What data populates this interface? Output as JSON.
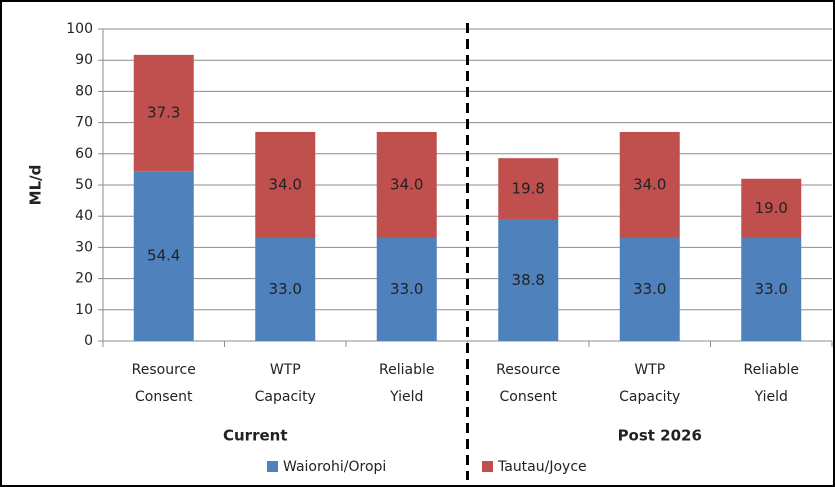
{
  "chart_data": {
    "type": "stacked_bar",
    "y_label": "ML/d",
    "categories": [
      [
        "Resource",
        "Consent"
      ],
      [
        "WTP",
        "Capacity"
      ],
      [
        "Reliable",
        "Yield"
      ],
      [
        "Resource",
        "Consent"
      ],
      [
        "WTP",
        "Capacity"
      ],
      [
        "Reliable",
        "Yield"
      ]
    ],
    "groups": [
      "Current",
      "Post 2026"
    ],
    "series": [
      {
        "name": "Waiorohi/Oropi",
        "color": "#4f81bd",
        "values": [
          54.4,
          33.0,
          33.0,
          38.8,
          33.0,
          33.0
        ],
        "value_labels": [
          "54.4",
          "33.0",
          "33.0",
          "38.8",
          "33.0",
          "33.0"
        ]
      },
      {
        "name": "Tautau/Joyce",
        "color": "#c0504d",
        "values": [
          37.3,
          34.0,
          34.0,
          19.8,
          34.0,
          19.0
        ],
        "value_labels": [
          "37.3",
          "34.0",
          "34.0",
          "19.8",
          "34.0",
          "19.0"
        ]
      }
    ],
    "ylim": [
      0,
      100
    ],
    "yticks": [
      0,
      10,
      20,
      30,
      40,
      50,
      60,
      70,
      80,
      90,
      100
    ],
    "grid": true,
    "legend": "bottom"
  }
}
